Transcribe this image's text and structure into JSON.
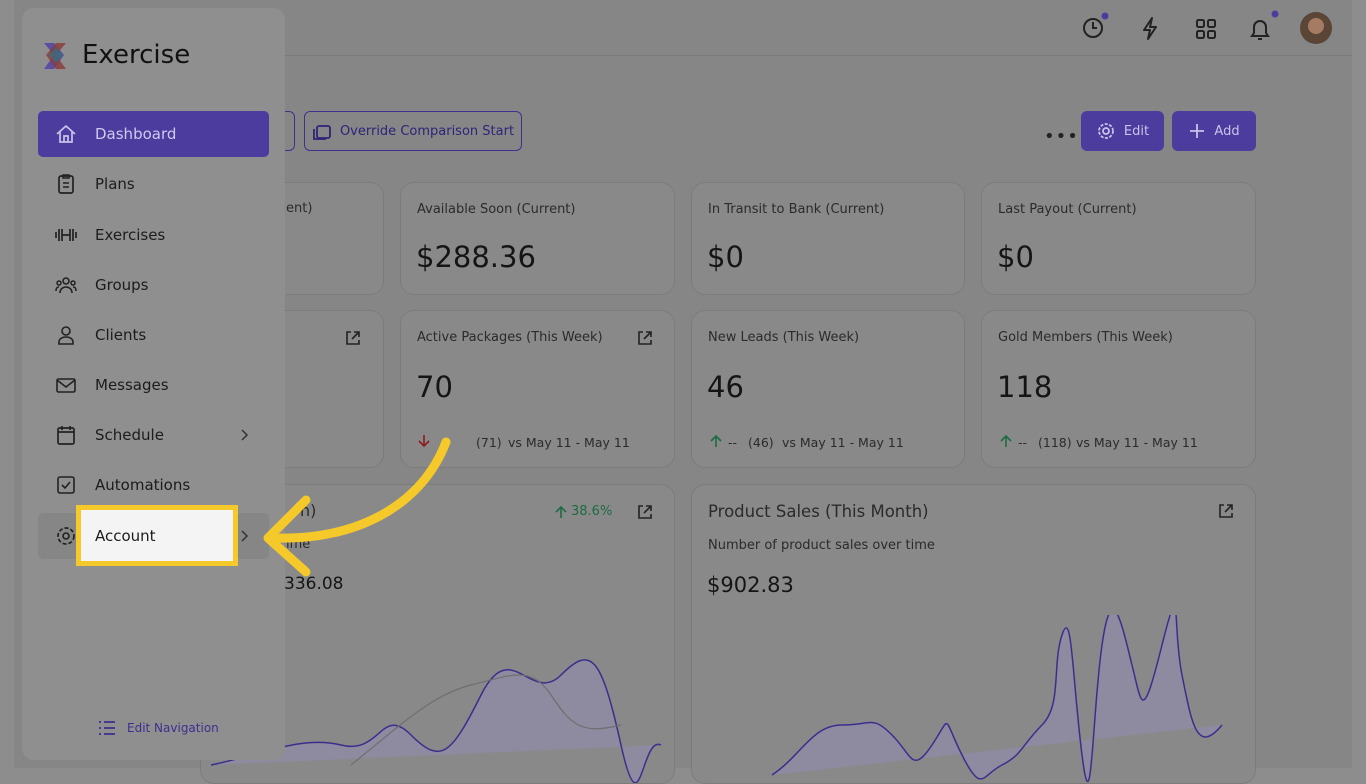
{
  "sidebar": {
    "brand": "Exercise",
    "nav": [
      "Dashboard",
      "Plans",
      "Exercises",
      "Groups",
      "Clients",
      "Messages",
      "Schedule",
      "Automations",
      "Account"
    ],
    "edit_navigation": "Edit Navigation"
  },
  "toolbar": {
    "override": "Override Comparison Start",
    "edit": "Edit",
    "add": "Add"
  },
  "row1": [
    {
      "label": "ent)"
    },
    {
      "label": "Available Soon (Current)",
      "value": "$288.36"
    },
    {
      "label": "In Transit to Bank (Current)",
      "value": "$0"
    },
    {
      "label": "Last Payout (Current)",
      "value": "$0"
    }
  ],
  "row2": [
    {
      "label": "Active Packages (This Week)",
      "value": "70",
      "previous": "(71)",
      "range": "vs May 11 - May 11"
    },
    {
      "label": "New Leads (This Week)",
      "value": "46",
      "change": "--",
      "previous": "(46)",
      "range": "vs May 11 - May 11"
    },
    {
      "label": "Gold Members (This Week)",
      "value": "118",
      "change": "--",
      "previous": "(118)",
      "range": "vs May 11 - May 11"
    }
  ],
  "row3": {
    "left": {
      "title": "h)",
      "change": "38.6%",
      "subtitle": "ime",
      "value": "336.08"
    },
    "right": {
      "title": "Product Sales (This Month)",
      "subtitle": "Number of product sales over time",
      "value": "$902.83"
    }
  }
}
